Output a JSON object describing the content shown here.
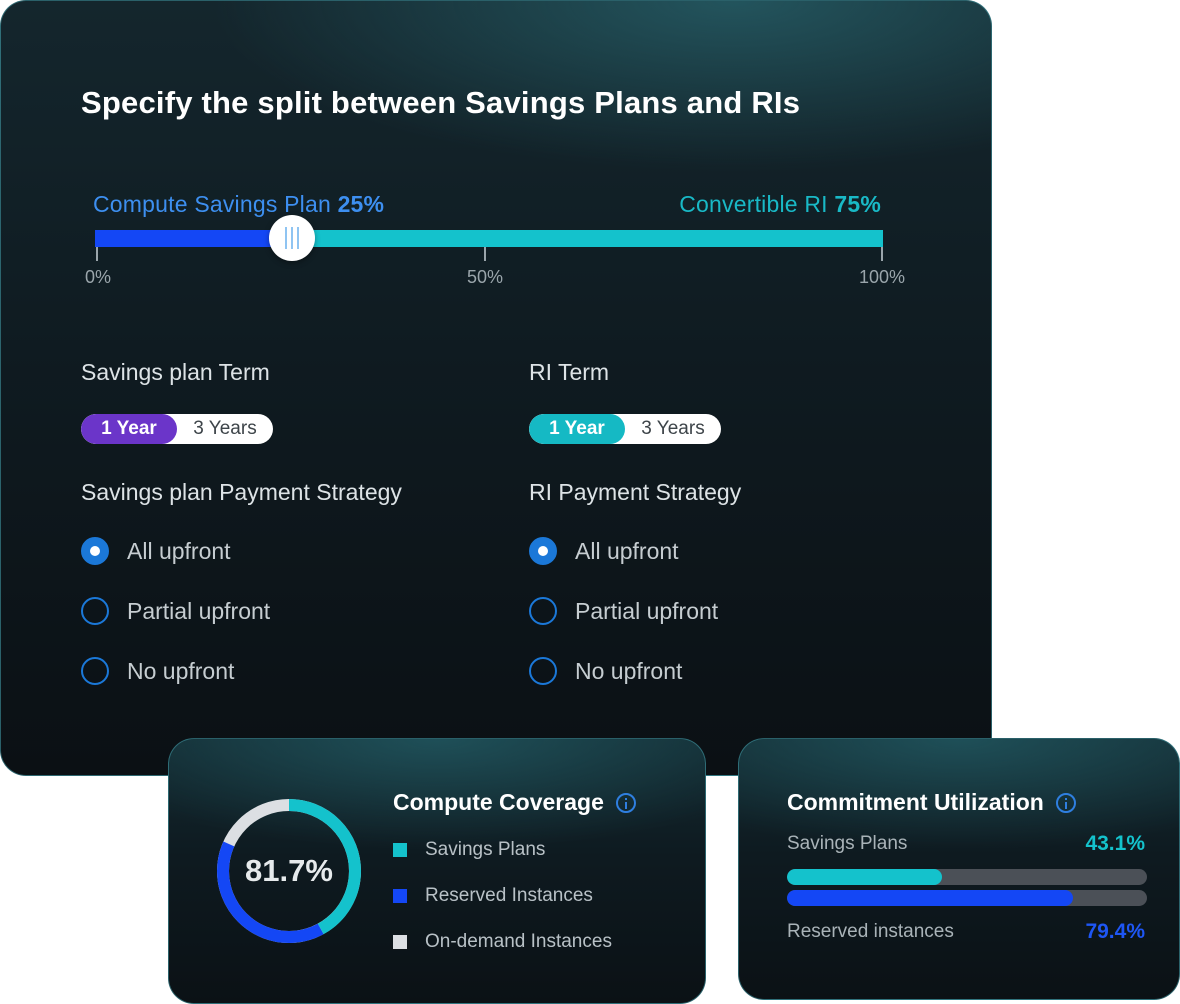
{
  "main": {
    "title": "Specify the split between Savings Plans and RIs",
    "slider": {
      "left_label": "Compute Savings Plan",
      "left_value": "25%",
      "right_label": "Convertible RI",
      "right_value": "75%",
      "position_percent": 25,
      "ticks": [
        "0%",
        "50%",
        "100%"
      ],
      "colors": {
        "left": "#1447f5",
        "right": "#14c2cc"
      }
    },
    "savings_plan": {
      "term_label": "Savings plan Term",
      "term_options": [
        "1 Year",
        "3 Years"
      ],
      "term_selected": "1 Year",
      "payment_label": "Savings plan Payment Strategy",
      "payment_options": [
        "All upfront",
        "Partial upfront",
        "No upfront"
      ],
      "payment_selected": "All upfront"
    },
    "ri": {
      "term_label": "RI Term",
      "term_options": [
        "1 Year",
        "3 Years"
      ],
      "term_selected": "1 Year",
      "payment_label": "RI Payment Strategy",
      "payment_options": [
        "All upfront",
        "Partial upfront",
        "No upfront"
      ],
      "payment_selected": "All upfront"
    }
  },
  "coverage": {
    "title": "Compute Coverage",
    "center_value": "81.7%",
    "legend": [
      {
        "label": "Savings Plans",
        "color": "#14c2cc"
      },
      {
        "label": "Reserved Instances",
        "color": "#1447f5"
      },
      {
        "label": "On-demand Instances",
        "color": "#dcdfe3"
      }
    ]
  },
  "utilization": {
    "title": "Commitment Utilization",
    "rows": [
      {
        "label": "Savings Plans",
        "value": "43.1%",
        "fraction": 0.431,
        "color": "#14c2cc"
      },
      {
        "label": "Reserved instances",
        "value": "79.4%",
        "fraction": 0.794,
        "color": "#1447f5"
      }
    ]
  }
}
